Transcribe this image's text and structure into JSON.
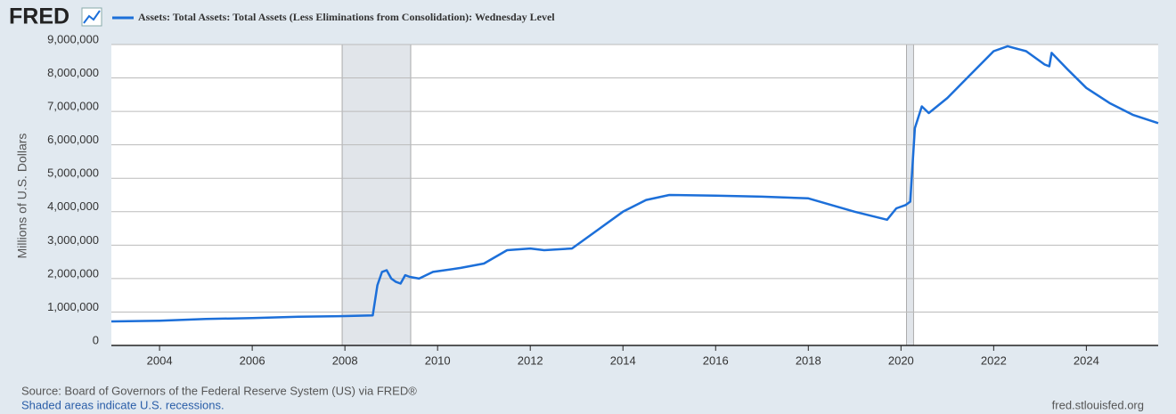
{
  "brand": "FRED",
  "source": "Source: Board of Governors of the Federal Reserve System (US) via FRED®",
  "recession_note": "Shaded areas indicate U.S. recessions.",
  "site": "fred.stlouisfed.org",
  "chart_data": {
    "type": "line",
    "y_label": "Millions of U.S. Dollars",
    "series": [
      {
        "name": "Assets: Total Assets: Total Assets (Less Eliminations from Consolidation): Wednesday Level",
        "color": "#1c6fd9",
        "x": [
          2002.96,
          2004,
          2005,
          2006,
          2007,
          2008,
          2008.6,
          2008.7,
          2008.8,
          2008.9,
          2009.0,
          2009.1,
          2009.2,
          2009.3,
          2009.4,
          2009.6,
          2009.9,
          2010.5,
          2011.0,
          2011.5,
          2012,
          2012.3,
          2012.9,
          2013.5,
          2014,
          2014.5,
          2015,
          2016,
          2017,
          2018,
          2019,
          2019.7,
          2019.9,
          2020.1,
          2020.2,
          2020.3,
          2020.45,
          2020.6,
          2021,
          2021.5,
          2022,
          2022.3,
          2022.7,
          2023.1,
          2023.2,
          2023.25,
          2023.6,
          2024,
          2024.5,
          2025,
          2025.55
        ],
        "values": [
          720000,
          740000,
          790000,
          820000,
          860000,
          880000,
          900000,
          1800000,
          2200000,
          2250000,
          2000000,
          1900000,
          1850000,
          2100000,
          2050000,
          2000000,
          2200000,
          2320000,
          2450000,
          2850000,
          2900000,
          2850000,
          2900000,
          3500000,
          4000000,
          4350000,
          4500000,
          4480000,
          4450000,
          4400000,
          4000000,
          3760000,
          4100000,
          4200000,
          4300000,
          6500000,
          7150000,
          6950000,
          7400000,
          8100000,
          8800000,
          8950000,
          8800000,
          8400000,
          8350000,
          8750000,
          8250000,
          7700000,
          7250000,
          6900000,
          6650000
        ]
      }
    ],
    "recessions": [
      [
        2007.94,
        2009.42
      ],
      [
        2020.12,
        2020.27
      ]
    ],
    "xlim": [
      2002.96,
      2025.55
    ],
    "xticks": [
      2004,
      2006,
      2008,
      2010,
      2012,
      2014,
      2016,
      2018,
      2020,
      2022,
      2024
    ],
    "ylim": [
      0,
      9000000
    ],
    "yticks": [
      0,
      {
        "value": 1000000,
        "label": "1,000,000"
      },
      {
        "value": 2000000,
        "label": "2,000,000"
      },
      {
        "value": 3000000,
        "label": "3,000,000"
      },
      {
        "value": 4000000,
        "label": "4,000,000"
      },
      {
        "value": 5000000,
        "label": "5,000,000"
      },
      {
        "value": 6000000,
        "label": "6,000,000"
      },
      {
        "value": 7000000,
        "label": "7,000,000"
      },
      {
        "value": 8000000,
        "label": "8,000,000"
      },
      {
        "value": 9000000,
        "label": "9,000,000"
      }
    ],
    "grid": true
  }
}
